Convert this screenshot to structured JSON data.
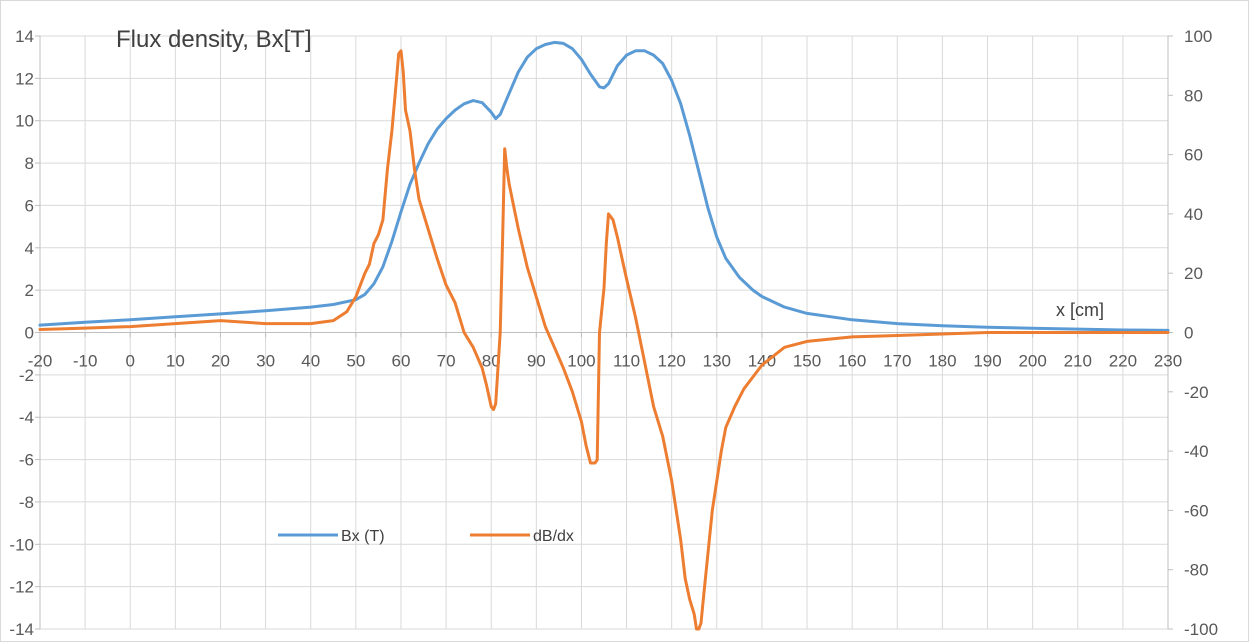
{
  "chart_data": {
    "type": "line",
    "title": "Flux density, Bx[T]",
    "xlabel": "x [cm]",
    "ylabel": "",
    "y2label": "",
    "xlim": [
      -20,
      230
    ],
    "ylim": [
      -14,
      14
    ],
    "y2lim": [
      -100,
      100
    ],
    "x_ticks": [
      -20,
      -10,
      0,
      10,
      20,
      30,
      40,
      50,
      60,
      70,
      80,
      90,
      100,
      110,
      120,
      130,
      140,
      150,
      160,
      170,
      180,
      190,
      200,
      210,
      220,
      230
    ],
    "y_ticks": [
      -14,
      -12,
      -10,
      -8,
      -6,
      -4,
      -2,
      0,
      2,
      4,
      6,
      8,
      10,
      12,
      14
    ],
    "y2_ticks": [
      -100,
      -80,
      -60,
      -40,
      -20,
      0,
      20,
      40,
      60,
      80,
      100
    ],
    "grid": true,
    "legend_placement": "bottom-left",
    "series": [
      {
        "name": "Bx (T)",
        "axis": "left",
        "color": "#5b9bd5",
        "x": [
          -20,
          -10,
          0,
          10,
          20,
          30,
          40,
          45,
          50,
          52,
          54,
          56,
          58,
          60,
          62,
          64,
          66,
          68,
          70,
          72,
          74,
          76,
          78,
          80,
          81,
          82,
          84,
          86,
          88,
          90,
          92,
          94,
          96,
          98,
          100,
          102,
          104,
          105,
          106,
          108,
          110,
          112,
          114,
          116,
          118,
          120,
          122,
          124,
          126,
          128,
          130,
          132,
          135,
          138,
          140,
          145,
          150,
          160,
          170,
          180,
          190,
          200,
          210,
          220,
          230
        ],
        "y": [
          0.35,
          0.48,
          0.6,
          0.74,
          0.88,
          1.03,
          1.2,
          1.32,
          1.55,
          1.8,
          2.3,
          3.1,
          4.3,
          5.7,
          7.0,
          8.0,
          8.9,
          9.6,
          10.1,
          10.5,
          10.8,
          10.95,
          10.85,
          10.4,
          10.1,
          10.3,
          11.3,
          12.3,
          13.0,
          13.4,
          13.6,
          13.7,
          13.65,
          13.4,
          12.9,
          12.2,
          11.6,
          11.55,
          11.75,
          12.6,
          13.1,
          13.3,
          13.3,
          13.1,
          12.7,
          11.9,
          10.8,
          9.3,
          7.6,
          5.9,
          4.5,
          3.5,
          2.6,
          2.0,
          1.7,
          1.2,
          0.9,
          0.6,
          0.42,
          0.32,
          0.25,
          0.2,
          0.16,
          0.12,
          0.1
        ]
      },
      {
        "name": "dB/dx",
        "axis": "right",
        "color": "#ed7d31",
        "x": [
          -20,
          -10,
          0,
          10,
          20,
          30,
          40,
          45,
          48,
          50,
          52,
          53,
          54,
          55,
          56,
          57,
          58,
          59,
          59.5,
          60,
          60.5,
          61,
          62,
          63,
          64,
          66,
          68,
          70,
          72,
          74,
          76,
          78,
          79,
          80,
          80.5,
          81,
          82,
          82.5,
          83,
          83.5,
          84,
          86,
          88,
          90,
          92,
          94,
          96,
          98,
          100,
          101,
          102,
          103,
          103.5,
          104,
          105,
          105.5,
          106,
          107,
          108,
          109,
          110,
          112,
          114,
          116,
          118,
          120,
          121,
          122,
          123,
          124,
          125,
          125.5,
          126,
          126.5,
          127,
          128,
          129,
          130,
          131,
          132,
          134,
          136,
          138,
          140,
          145,
          150,
          160,
          170,
          180,
          190,
          200,
          210,
          220,
          230
        ],
        "y": [
          1,
          1.5,
          2,
          3,
          4,
          3,
          3,
          4,
          7,
          12,
          20,
          23,
          30,
          33,
          38,
          55,
          68,
          85,
          94,
          95,
          88,
          75,
          68,
          55,
          45,
          35,
          25,
          16,
          10,
          0,
          -5,
          -12,
          -18,
          -25,
          -26,
          -24,
          0,
          30,
          62,
          55,
          50,
          35,
          22,
          12,
          2,
          -5,
          -12,
          -20,
          -30,
          -38,
          -44,
          -44,
          -43,
          0,
          15,
          30,
          40,
          38,
          32,
          25,
          18,
          5,
          -10,
          -25,
          -35,
          -50,
          -60,
          -70,
          -83,
          -90,
          -95,
          -100,
          -100,
          -98,
          -90,
          -75,
          -60,
          -50,
          -40,
          -32,
          -25,
          -19,
          -15,
          -11,
          -5,
          -3,
          -1.5,
          -1,
          -0.5,
          0,
          0,
          0,
          0,
          0
        ]
      }
    ]
  }
}
